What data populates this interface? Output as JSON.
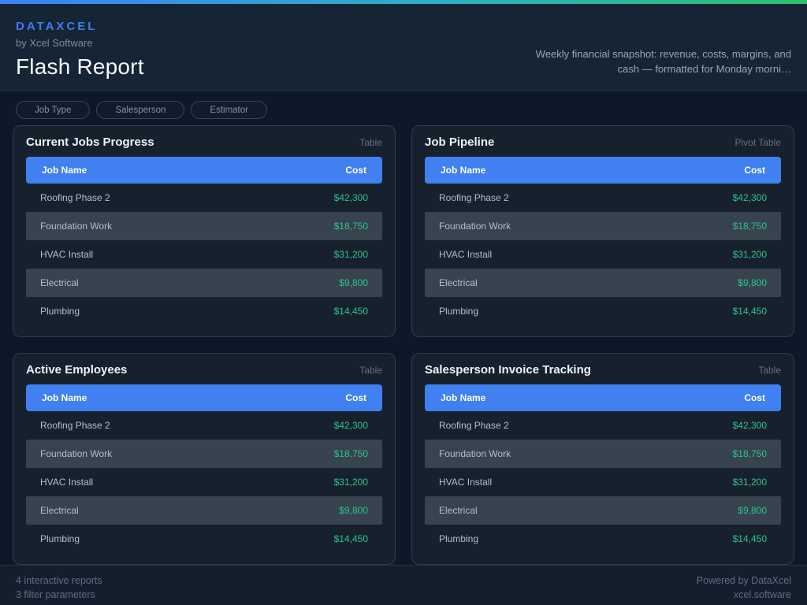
{
  "header": {
    "brand": "DATAXCEL",
    "byline": "by Xcel Software",
    "title": "Flash Report",
    "description_line1": "Weekly financial snapshot: revenue, costs, margins, and",
    "description_line2": "cash — formatted for Monday morni…"
  },
  "filters": [
    {
      "label": "Job Type"
    },
    {
      "label": "Salesperson"
    },
    {
      "label": "Estimator"
    }
  ],
  "cards": [
    {
      "title": "Current Jobs Progress",
      "type": "Table",
      "columns": [
        "Job Name",
        "Cost"
      ],
      "rows": [
        {
          "job": "Roofing Phase 2",
          "cost": "$42,300"
        },
        {
          "job": "Foundation Work",
          "cost": "$18,750"
        },
        {
          "job": "HVAC Install",
          "cost": "$31,200"
        },
        {
          "job": "Electrical",
          "cost": "$9,800"
        },
        {
          "job": "Plumbing",
          "cost": "$14,450"
        }
      ]
    },
    {
      "title": "Job Pipeline",
      "type": "Pivot Table",
      "columns": [
        "Job Name",
        "Cost"
      ],
      "rows": [
        {
          "job": "Roofing Phase 2",
          "cost": "$42,300"
        },
        {
          "job": "Foundation Work",
          "cost": "$18,750"
        },
        {
          "job": "HVAC Install",
          "cost": "$31,200"
        },
        {
          "job": "Electrical",
          "cost": "$9,800"
        },
        {
          "job": "Plumbing",
          "cost": "$14,450"
        }
      ]
    },
    {
      "title": "Active Employees",
      "type": "Table",
      "columns": [
        "Job Name",
        "Cost"
      ],
      "rows": [
        {
          "job": "Roofing Phase 2",
          "cost": "$42,300"
        },
        {
          "job": "Foundation Work",
          "cost": "$18,750"
        },
        {
          "job": "HVAC Install",
          "cost": "$31,200"
        },
        {
          "job": "Electrical",
          "cost": "$9,800"
        },
        {
          "job": "Plumbing",
          "cost": "$14,450"
        }
      ]
    },
    {
      "title": "Salesperson Invoice Tracking",
      "type": "Table",
      "columns": [
        "Job Name",
        "Cost"
      ],
      "rows": [
        {
          "job": "Roofing Phase 2",
          "cost": "$42,300"
        },
        {
          "job": "Foundation Work",
          "cost": "$18,750"
        },
        {
          "job": "HVAC Install",
          "cost": "$31,200"
        },
        {
          "job": "Electrical",
          "cost": "$9,800"
        },
        {
          "job": "Plumbing",
          "cost": "$14,450"
        }
      ]
    }
  ],
  "footer": {
    "left_line1": "4 interactive reports",
    "left_line2": "3 filter parameters",
    "right_line1": "Powered by DataXcel",
    "right_line2": "xcel.software"
  },
  "colors": {
    "accent_gradient_start": "#3b82f6",
    "accent_gradient_mid": "#2cb1c4",
    "accent_gradient_end": "#2bc06e",
    "brand_blue": "#3c7ef2",
    "table_header_blue": "#4080f0",
    "value_green": "#2bc48b"
  }
}
